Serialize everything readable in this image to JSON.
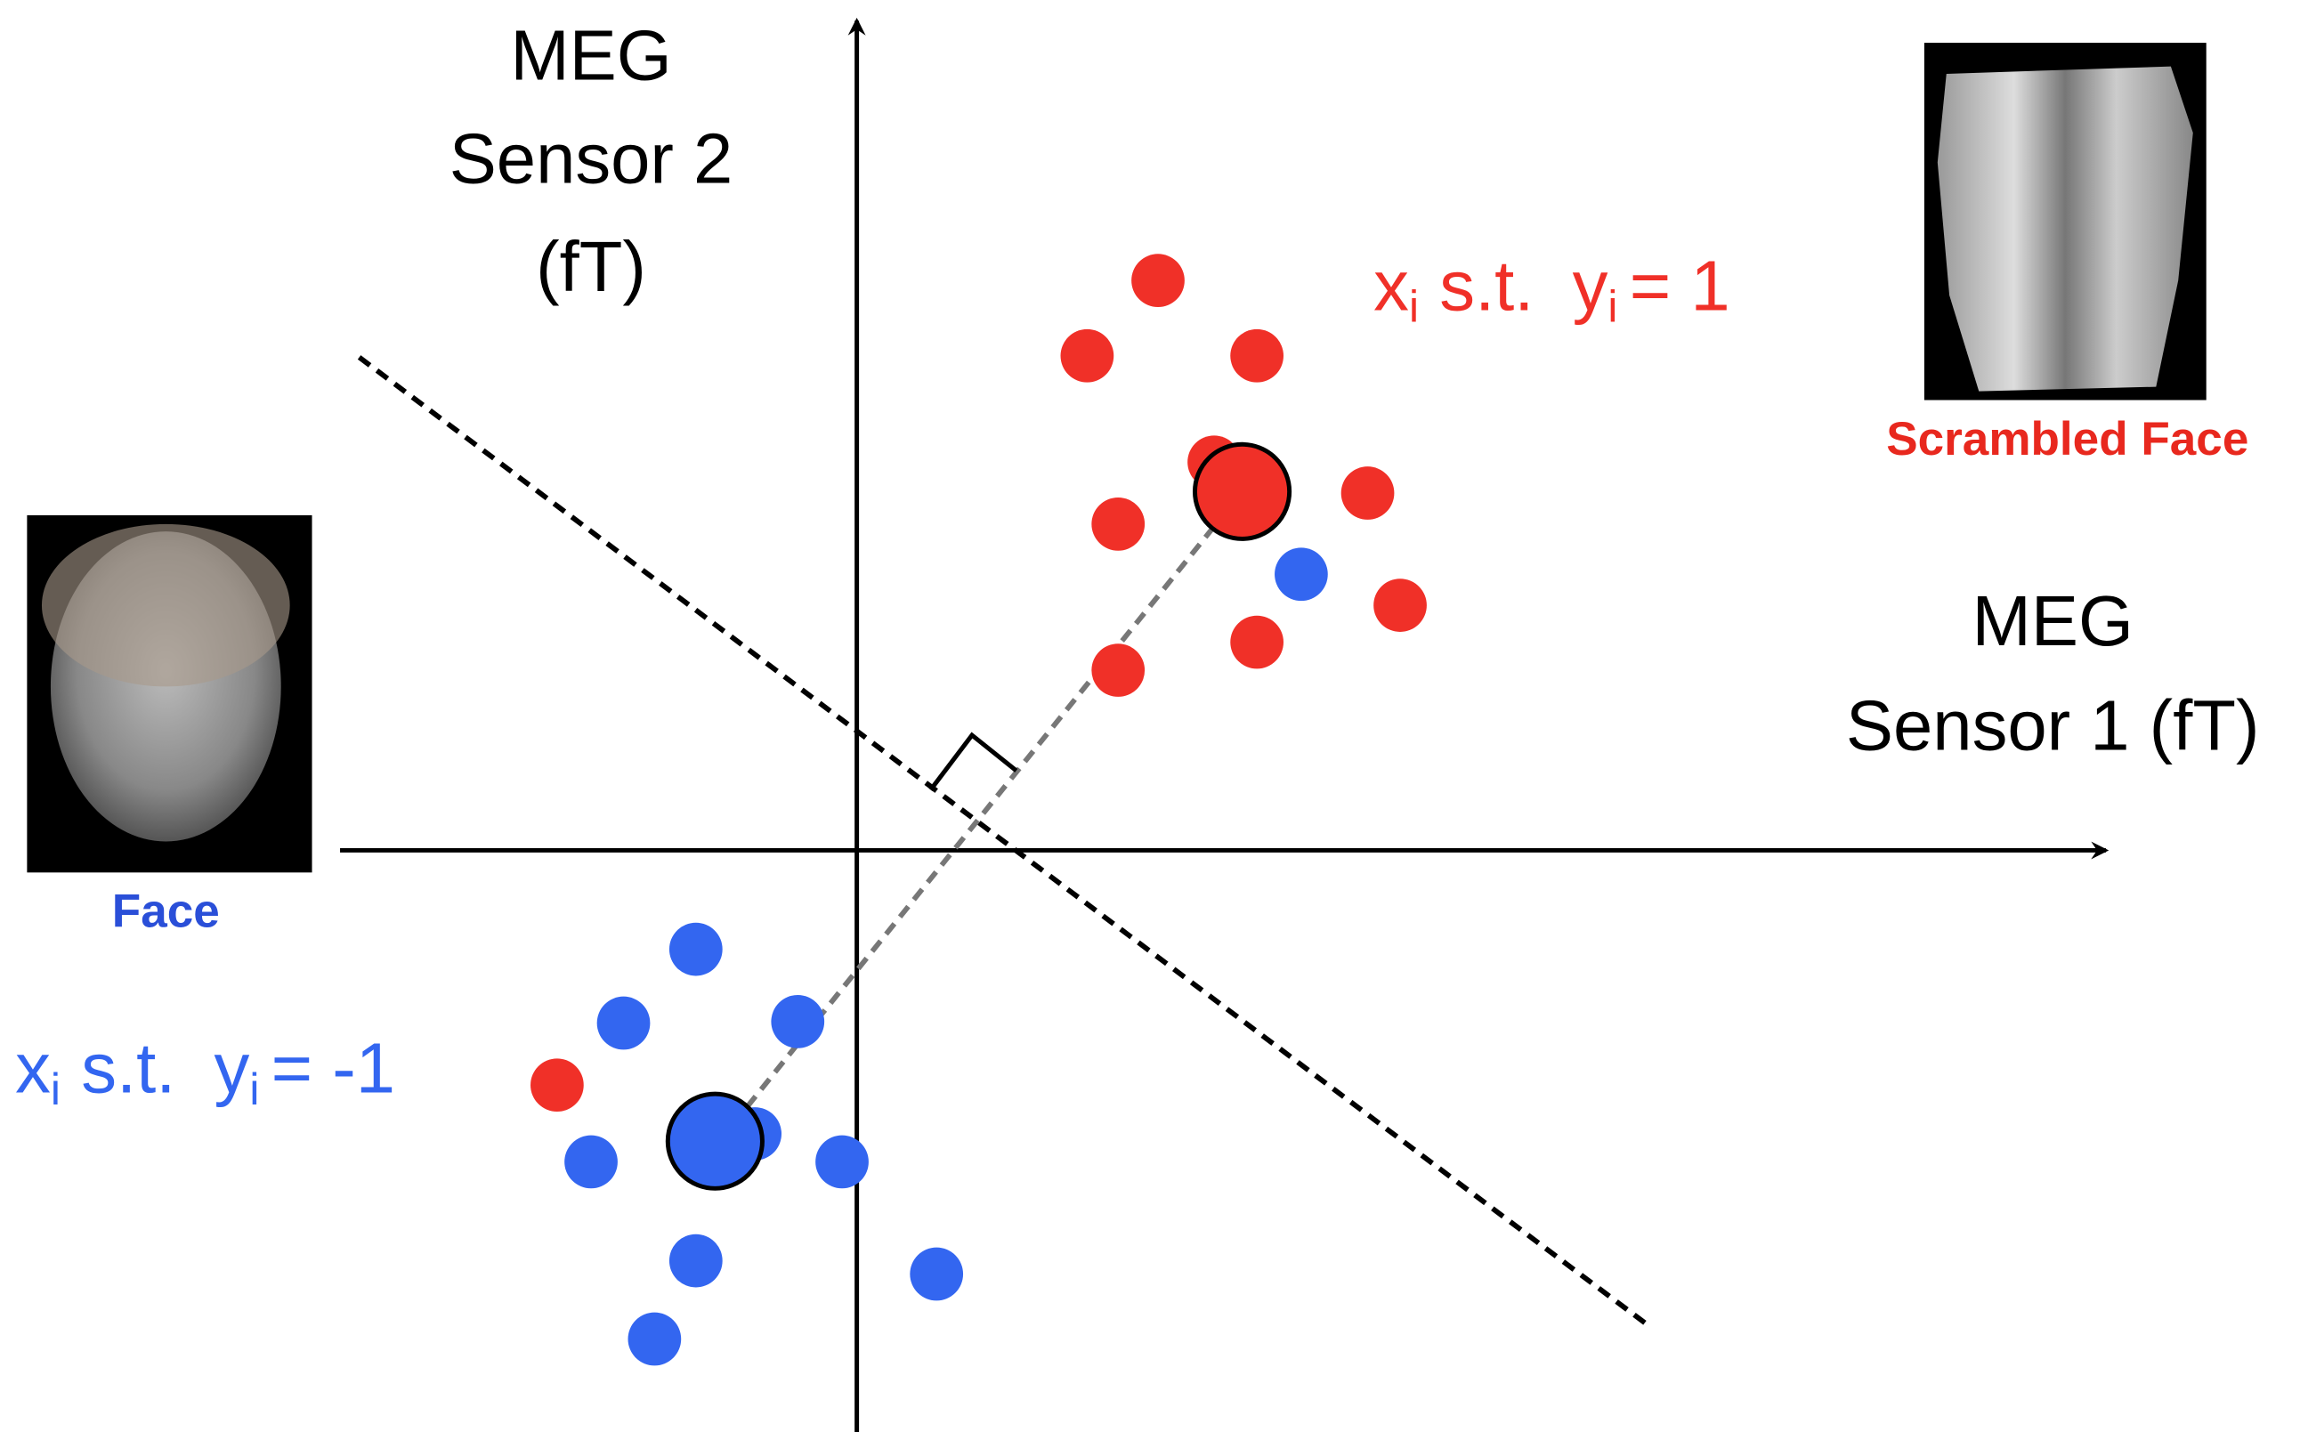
{
  "y_axis_label": [
    "MEG",
    "Sensor 2",
    "(fT)"
  ],
  "x_axis_label": [
    "MEG",
    "Sensor 1 (fT)"
  ],
  "positive_class": {
    "x": "x",
    "x_sub": "i",
    "st": "s.t.",
    "y": "y",
    "y_sub": "i",
    "eq": "= 1"
  },
  "negative_class": {
    "x": "x",
    "x_sub": "i",
    "st": "s.t.",
    "y": "y",
    "y_sub": "i",
    "eq": "= -1"
  },
  "images": {
    "face": "Face",
    "scrambled": "Scrambled Face"
  }
}
